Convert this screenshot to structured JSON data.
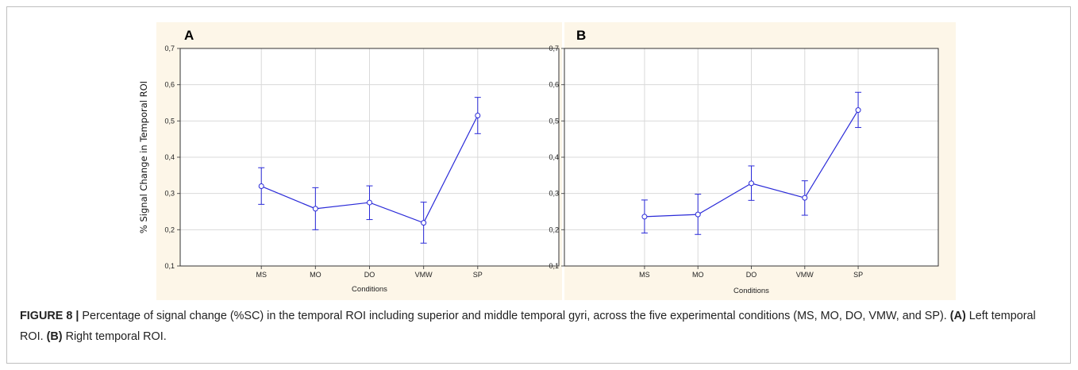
{
  "chart_data": [
    {
      "type": "line",
      "panel_label": "A",
      "categories": [
        "MS",
        "MO",
        "DO",
        "VMW",
        "SP"
      ],
      "series": [
        {
          "values": [
            0.32,
            0.258,
            0.275,
            0.219,
            0.515
          ],
          "error_low": [
            0.27,
            0.2,
            0.228,
            0.163,
            0.465
          ],
          "error_high": [
            0.371,
            0.316,
            0.321,
            0.276,
            0.565
          ]
        }
      ],
      "xlabel": "Conditions",
      "ylabel": "% Signal Change in Temporal ROI",
      "ylim": [
        0.1,
        0.7
      ],
      "yticks": [
        "0,1",
        "0,2",
        "0,3",
        "0,4",
        "0,5",
        "0,6",
        "0,7"
      ],
      "grid": true,
      "line_color": "#2a2ad8"
    },
    {
      "type": "line",
      "panel_label": "B",
      "categories": [
        "MS",
        "MO",
        "DO",
        "VMW",
        "SP"
      ],
      "series": [
        {
          "values": [
            0.236,
            0.242,
            0.328,
            0.288,
            0.53
          ],
          "error_low": [
            0.191,
            0.187,
            0.281,
            0.24,
            0.482
          ],
          "error_high": [
            0.282,
            0.298,
            0.376,
            0.335,
            0.579
          ]
        }
      ],
      "xlabel": "Conditions",
      "ylabel": "",
      "ylim": [
        0.1,
        0.7
      ],
      "yticks": [
        "0,1",
        "0,2",
        "0,3",
        "0,4",
        "0,5",
        "0,6",
        "0,7"
      ],
      "grid": true,
      "line_color": "#2a2ad8"
    }
  ],
  "caption": {
    "label": "FIGURE 8 |",
    "text_main": " Percentage of signal change (%SC) in the temporal ROI including superior and middle temporal gyri, across the five experimental conditions (MS, MO, DO, VMW, and SP). ",
    "a_label": "(A)",
    "a_text": " Left temporal ROI. ",
    "b_label": "(B)",
    "b_text": " Right temporal ROI."
  },
  "colors": {
    "panel_bg": "#fdf6e8",
    "plot_bg": "#ffffff",
    "grid": "#d9d9d9",
    "series": "#2a2ad8"
  }
}
